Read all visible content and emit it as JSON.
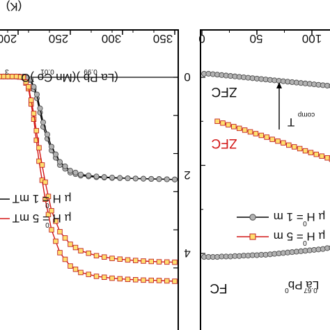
{
  "figure": {
    "background": "#ffffff",
    "frame_color": "#000000"
  },
  "colors": {
    "black_series": "#000000",
    "gray_marker": "#b3b3b3",
    "red_line": "#d21414",
    "yellow_marker": "#ffe070",
    "marker_edge_dark": "#4d4d4d",
    "marker_edge_red": "#c22020"
  },
  "chart_data": [
    {
      "type": "line",
      "panel": "left",
      "rendering": "rotated 180 degrees",
      "x_top_axis_label_fragment": "(K)",
      "x_ticks": [
        200,
        250,
        300,
        350
      ],
      "x_tick_labels": [
        "200",
        "250",
        "300",
        "350"
      ],
      "xlim": [
        200,
        370
      ],
      "y_ticks": [
        0
      ],
      "y_tick_labels": [
        "0"
      ],
      "ylim": [
        -5.4,
        0.3
      ],
      "annotations": [
        "(La0.67Pb0.33)(Mn0.99Co0.01)O3",
        "µ0H = 1 mT",
        "µ0H = 5 mT"
      ],
      "legend_placement": "left",
      "series": [
        {
          "name": "μ0H = 1 mT",
          "color": "#000000",
          "marker": "circle",
          "curves": [
            {
              "label": "FC",
              "x": [
                200,
                215,
                230,
                245,
                260,
                275,
                290,
                300,
                310,
                318,
                326,
                332,
                338,
                345,
                352,
                360,
                368
              ],
              "y": [
                -2.68,
                -2.67,
                -2.66,
                -2.65,
                -2.64,
                -2.62,
                -2.58,
                -2.5,
                -2.3,
                -1.92,
                -1.3,
                -0.55,
                -0.08,
                0.01,
                0.02,
                0.02,
                0.02
              ]
            },
            {
              "label": "ZFC",
              "x": [
                200,
                215,
                230,
                245,
                260,
                275,
                290,
                300,
                310,
                318,
                326,
                332,
                338,
                345,
                352,
                360,
                368
              ],
              "y": [
                -2.68,
                -2.67,
                -2.66,
                -2.65,
                -2.63,
                -2.6,
                -2.55,
                -2.45,
                -2.22,
                -1.82,
                -1.18,
                -0.45,
                -0.05,
                0.02,
                0.02,
                0.02,
                0.02
              ]
            }
          ]
        },
        {
          "name": "μ0H = 5 mT",
          "color": "#d21414",
          "marker": "square",
          "curves": [
            {
              "label": "FC",
              "x": [
                200,
                215,
                230,
                245,
                260,
                275,
                290,
                300,
                310,
                318,
                324,
                330,
                335,
                340,
                345,
                352,
                360,
                368
              ],
              "y": [
                -5.35,
                -5.33,
                -5.32,
                -5.3,
                -5.27,
                -5.22,
                -5.12,
                -4.95,
                -4.6,
                -4.0,
                -3.2,
                -2.2,
                -1.1,
                -0.3,
                0.0,
                0.02,
                0.02,
                0.02
              ]
            },
            {
              "label": "ZFC",
              "x": [
                200,
                215,
                230,
                245,
                260,
                275,
                290,
                300,
                310,
                318,
                324,
                330,
                335,
                340,
                345,
                352,
                360,
                368
              ],
              "y": [
                -4.85,
                -4.84,
                -4.82,
                -4.79,
                -4.75,
                -4.68,
                -4.55,
                -4.38,
                -4.05,
                -3.5,
                -2.75,
                -1.85,
                -0.95,
                -0.25,
                0.0,
                0.02,
                0.02,
                0.02
              ]
            }
          ]
        }
      ]
    },
    {
      "type": "line",
      "panel": "right",
      "rendering": "rotated 180 degrees",
      "x_ticks": [
        0,
        50,
        100
      ],
      "x_tick_labels": [
        "0",
        "50",
        "100"
      ],
      "xlim": [
        -10,
        120
      ],
      "y_ticks": [
        0,
        2,
        4
      ],
      "y_tick_labels": [
        "0",
        "2",
        "4"
      ],
      "ylim": [
        -0.3,
        4.6
      ],
      "annotations": [
        "ZFC",
        "ZFC",
        "FC",
        "T comp",
        "La0.67Pb0.33",
        "µ0H = 1 mT",
        "µ0H = 5 mT"
      ],
      "series": [
        {
          "name": "μ0H = 1 mT",
          "color": "#000000",
          "marker": "circle",
          "curves": [
            {
              "label": "ZFC",
              "x": [
                2,
                6,
                10,
                14,
                18,
                22,
                26,
                30,
                34,
                38,
                42,
                46,
                50,
                54,
                58,
                62,
                66,
                70,
                74,
                78,
                82,
                86,
                90,
                94,
                98,
                102,
                106,
                110,
                114,
                118
              ],
              "y": [
                -0.08,
                -0.08,
                -0.07,
                -0.06,
                -0.05,
                -0.04,
                -0.03,
                -0.02,
                -0.01,
                0.0,
                0.01,
                0.02,
                0.03,
                0.04,
                0.05,
                0.06,
                0.07,
                0.08,
                0.09,
                0.1,
                0.11,
                0.12,
                0.13,
                0.14,
                0.15,
                0.16,
                0.17,
                0.18,
                0.19,
                0.2
              ]
            },
            {
              "label": "FC",
              "x": [
                2,
                6,
                10,
                14,
                18,
                22,
                26,
                30,
                34,
                38,
                42,
                46,
                50,
                54,
                58,
                62,
                66,
                70,
                74,
                78,
                82,
                86,
                90,
                94,
                98,
                102,
                106,
                110,
                114,
                118
              ],
              "y": [
                4.08,
                4.08,
                4.08,
                4.08,
                4.07,
                4.07,
                4.07,
                4.06,
                4.06,
                4.05,
                4.05,
                4.04,
                4.04,
                4.03,
                4.03,
                4.02,
                4.01,
                4.0,
                3.99,
                3.98,
                3.97,
                3.96,
                3.95,
                3.94,
                3.93,
                3.92,
                3.91,
                3.9,
                3.88,
                3.87
              ]
            }
          ]
        },
        {
          "name": "μ0H = 5 mT",
          "color": "#d21414",
          "marker": "square",
          "curves": [
            {
              "label": "ZFC",
              "x": [
                14,
                19,
                24,
                29,
                34,
                39,
                44,
                49,
                54,
                59,
                64,
                69,
                74,
                79,
                84,
                89,
                94,
                99,
                104,
                109,
                114,
                118
              ],
              "y": [
                1.0,
                1.04,
                1.08,
                1.12,
                1.16,
                1.2,
                1.24,
                1.28,
                1.32,
                1.36,
                1.41,
                1.45,
                1.49,
                1.54,
                1.58,
                1.62,
                1.67,
                1.71,
                1.75,
                1.79,
                1.83,
                1.86
              ]
            }
          ]
        }
      ]
    }
  ],
  "text": {
    "left_top_label": "(K)",
    "left_tick_200": "200",
    "left_tick_250": "250",
    "left_tick_300": "300",
    "left_tick_350": "350",
    "left_ytick_0": "0",
    "left_formula_main": "(La  Pb  )(Mn  Co  )O",
    "left_formula_sub1": "0.99",
    "left_formula_sub2": "0.01",
    "left_formula_sub3": "3",
    "legend1_label": "µ H = 1 mT",
    "legend1_sub": "0",
    "legend2_label": "µ H = 5 mT",
    "legend2_sub": "0",
    "right_tick_0": "0",
    "right_tick_50": "50",
    "right_tick_100": "100",
    "right_ytick_0": "0",
    "right_ytick_2": "2",
    "right_ytick_4": "4",
    "zfc_black": "ZFC",
    "zfc_red": "ZFC",
    "fc_black": "FC",
    "tcomp_main": "T",
    "tcomp_sub": "comp",
    "r_legend1": "µ H = 1 m",
    "r_legend1_sub": "0",
    "r_legend2": "µ H = 5 m",
    "r_legend2_sub": "0",
    "compound_right": "La    Pb",
    "compound_right_sub1": "0.67",
    "compound_right_sub2": "0"
  }
}
